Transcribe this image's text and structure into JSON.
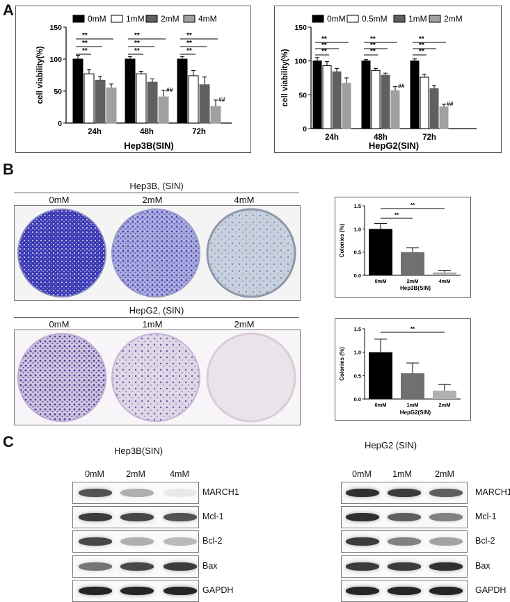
{
  "panels": {
    "a": "A",
    "b": "B",
    "c": "C"
  },
  "chart_data": [
    {
      "type": "bar",
      "title": "Hep3B(SIN)",
      "ylabel": "cell viability(%)",
      "ylim": [
        0,
        150
      ],
      "yticks": [
        0,
        50,
        100,
        150
      ],
      "categories": [
        "24h",
        "48h",
        "72h"
      ],
      "series": [
        {
          "name": "0mM",
          "color": "#000000",
          "values": [
            100,
            100,
            100
          ],
          "errors": [
            6,
            4,
            4
          ]
        },
        {
          "name": "1mM",
          "color": "#ffffff",
          "values": [
            77,
            77,
            74
          ],
          "errors": [
            7,
            4,
            8
          ]
        },
        {
          "name": "2mM",
          "color": "#606060",
          "values": [
            67,
            64,
            60
          ],
          "errors": [
            6,
            5,
            12
          ]
        },
        {
          "name": "4mM",
          "color": "#a0a0a0",
          "values": [
            55,
            41,
            26
          ],
          "errors": [
            6,
            10,
            10
          ]
        }
      ],
      "hash_label": "##",
      "sig_label": "**",
      "legend": "top"
    },
    {
      "type": "bar",
      "title": "HepG2(SIN)",
      "ylabel": "cell viability(%)",
      "ylim": [
        0,
        150
      ],
      "yticks": [
        0,
        50,
        100,
        150
      ],
      "categories": [
        "24h",
        "48h",
        "72h"
      ],
      "series": [
        {
          "name": "0mM",
          "color": "#000000",
          "values": [
            100,
            100,
            100
          ],
          "errors": [
            5,
            2,
            3
          ]
        },
        {
          "name": "0.5mM",
          "color": "#ffffff",
          "values": [
            93,
            86,
            76
          ],
          "errors": [
            6,
            3,
            4
          ]
        },
        {
          "name": "1mM",
          "color": "#606060",
          "values": [
            84,
            79,
            59
          ],
          "errors": [
            5,
            3,
            5
          ]
        },
        {
          "name": "2mM",
          "color": "#a0a0a0",
          "values": [
            67,
            56,
            32
          ],
          "errors": [
            8,
            6,
            4
          ]
        }
      ],
      "hash_label": "##",
      "sig_label": "**",
      "legend": "top"
    },
    {
      "type": "bar",
      "xlabel": "Hep3B(SIN)",
      "ylabel": "Colonies (%)",
      "ylim": [
        0,
        1.5
      ],
      "yticks": [
        "0.0",
        "0.5",
        "1.0",
        "1.5"
      ],
      "categories": [
        "0mM",
        "2mM",
        "4mM"
      ],
      "values": [
        1.0,
        0.5,
        0.06
      ],
      "errors": [
        0.12,
        0.09,
        0.04
      ],
      "colors": [
        "#000000",
        "#707070",
        "#b0b0b0"
      ],
      "sig_label": "**"
    },
    {
      "type": "bar",
      "xlabel": "HepG2(SIN)",
      "ylabel": "Colonies (%)",
      "ylim": [
        0,
        1.5
      ],
      "yticks": [
        "0.0",
        "0.5",
        "1.0",
        "1.5"
      ],
      "categories": [
        "0mM",
        "1mM",
        "2mM"
      ],
      "values": [
        1.0,
        0.55,
        0.18
      ],
      "errors": [
        0.28,
        0.22,
        0.13
      ],
      "colors": [
        "#000000",
        "#707070",
        "#b0b0b0"
      ],
      "sig_label": "**"
    }
  ],
  "colony": {
    "hep3b": {
      "title": "Hep3B, (SIN)",
      "labels": [
        "0mM",
        "2mM",
        "4mM"
      ]
    },
    "hepg2": {
      "title": "HepG2, (SIN)",
      "labels": [
        "0mM",
        "1mM",
        "2mM"
      ]
    }
  },
  "western": {
    "hep3b": {
      "title": "Hep3B(SIN)",
      "labels": [
        "0mM",
        "2mM",
        "4mM"
      ],
      "proteins": [
        "MARCH1",
        "Mcl-1",
        "Bcl-2",
        "Bax",
        "GAPDH"
      ],
      "intensity": [
        [
          0.75,
          0.35,
          0.1
        ],
        [
          0.85,
          0.8,
          0.75
        ],
        [
          0.8,
          0.35,
          0.3
        ],
        [
          0.6,
          0.8,
          0.85
        ],
        [
          0.95,
          0.95,
          0.95
        ]
      ]
    },
    "hepg2": {
      "title": "HepG2 (SIN)",
      "labels": [
        "0mM",
        "1mM",
        "2mM"
      ],
      "proteins": [
        "MARCH1",
        "Mcl-1",
        "Bcl-2",
        "Bax",
        "GAPDH"
      ],
      "intensity": [
        [
          0.9,
          0.85,
          0.7
        ],
        [
          0.9,
          0.7,
          0.55
        ],
        [
          0.85,
          0.55,
          0.4
        ],
        [
          0.85,
          0.85,
          0.9
        ],
        [
          0.95,
          0.95,
          0.95
        ]
      ]
    }
  }
}
